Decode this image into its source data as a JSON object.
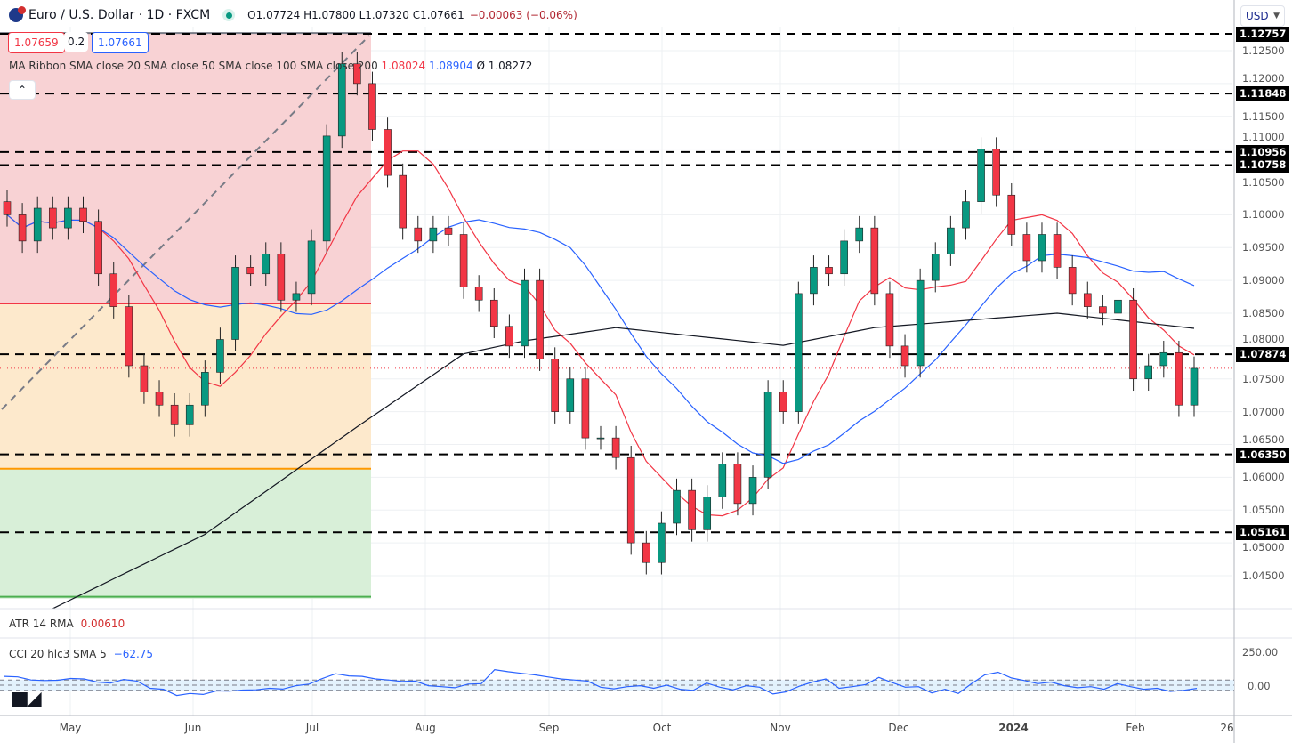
{
  "header": {
    "symbol_title": "Euro / U.S. Dollar · 1D · FXCM",
    "open": "O1.07724",
    "high": "H1.07800",
    "low": "L1.07320",
    "close": "C1.07661",
    "change": "−0.00063 (−0.06%)",
    "sell_price": "1.07659",
    "spread": "0.2",
    "buy_price": "1.07661",
    "collapse_icon": "chevron-up-icon",
    "currency_selector": "USD"
  },
  "ma_legend": {
    "label": "MA Ribbon SMA close 20 SMA close 50 SMA close 100 SMA close 200",
    "sma20": "1.08024",
    "sma50": "1.08904",
    "sma200_prefix": "Ø",
    "sma200": "1.08272"
  },
  "indicators": {
    "atr_label": "ATR 14 RMA",
    "atr_value": "0.00610",
    "cci_label": "CCI 20 hlc3 SMA 5",
    "cci_value": "−62.75",
    "cci_axis": [
      "250.00",
      "0.00"
    ]
  },
  "colors": {
    "up": "#089981",
    "down": "#f23645",
    "sma20": "#f23645",
    "sma50": "#2962ff",
    "sma200": "#131722",
    "fib_red": "#f8d2d4",
    "fib_orange": "#fde9cc",
    "fib_green": "#d8efd8",
    "cci": "#2962ff"
  },
  "chart_data": {
    "type": "candlestick",
    "title": "Euro / U.S. Dollar · 1D · FXCM",
    "ylim": [
      1.0415,
      1.129
    ],
    "grid": true,
    "closes": [
      1.1,
      1.096,
      1.101,
      1.098,
      1.101,
      1.099,
      1.091,
      1.086,
      1.077,
      1.073,
      1.071,
      1.068,
      1.071,
      1.076,
      1.081,
      1.092,
      1.091,
      1.094,
      1.087,
      1.088,
      1.096,
      1.112,
      1.123,
      1.12,
      1.113,
      1.106,
      1.098,
      1.096,
      1.098,
      1.097,
      1.089,
      1.087,
      1.083,
      1.08,
      1.09,
      1.078,
      1.07,
      1.075,
      1.066,
      1.066,
      1.063,
      1.05,
      1.047,
      1.053,
      1.058,
      1.052,
      1.057,
      1.062,
      1.056,
      1.06,
      1.073,
      1.07,
      1.088,
      1.092,
      1.091,
      1.096,
      1.098,
      1.088,
      1.08,
      1.077,
      1.09,
      1.094,
      1.098,
      1.102,
      1.11,
      1.103,
      1.097,
      1.093,
      1.097,
      1.092,
      1.088,
      1.086,
      1.085,
      1.087,
      1.075,
      1.077,
      1.079,
      1.071,
      1.0766
    ],
    "sma200_anchors": [
      [
        3,
        1.04
      ],
      [
        13,
        1.0513
      ],
      [
        23,
        1.0677
      ],
      [
        30,
        1.0788
      ],
      [
        34,
        1.0808
      ],
      [
        40,
        1.0828
      ],
      [
        51,
        1.0801
      ],
      [
        57,
        1.0828
      ],
      [
        69,
        1.085
      ],
      [
        78,
        1.0827
      ]
    ],
    "horizontal_levels": [
      "1.12757",
      "1.11848",
      "1.10956",
      "1.10758",
      "1.07874",
      "1.06350",
      "1.05161"
    ],
    "current_price": 1.07661,
    "fib_zones": [
      {
        "from": 1.1277,
        "to": 1.0865,
        "color": "#f8d2d4"
      },
      {
        "from": 1.0865,
        "to": 1.0613,
        "color": "#fde9cc"
      },
      {
        "from": 1.0613,
        "to": 1.0415,
        "color": "#d8efd8"
      }
    ],
    "y_ticks": [
      "1.12500",
      "1.12000",
      "1.11500",
      "1.11000",
      "1.10500",
      "1.10000",
      "1.09500",
      "1.09000",
      "1.08500",
      "1.08000",
      "1.07500",
      "1.07000",
      "1.06500",
      "1.06000",
      "1.05500",
      "1.05000",
      "1.04500"
    ],
    "x_ticks": [
      "May",
      "Jun",
      "Jul",
      "Aug",
      "Sep",
      "Oct",
      "Nov",
      "Dec",
      "2024",
      "Feb",
      "26"
    ],
    "cci_values": [
      170,
      160,
      100,
      90,
      95,
      130,
      120,
      60,
      40,
      110,
      80,
      -60,
      -80,
      -200,
      -160,
      -180,
      -110,
      -115,
      -95,
      -90,
      -60,
      -75,
      -10,
      20,
      130,
      220,
      180,
      170,
      120,
      100,
      70,
      80,
      -10,
      -30,
      -50,
      20,
      30,
      300,
      260,
      230,
      200,
      160,
      120,
      100,
      80,
      -40,
      -70,
      -30,
      -10,
      -60,
      0,
      -80,
      -100,
      40,
      -40,
      -90,
      -10,
      -40,
      -170,
      -130,
      -20,
      60,
      120,
      -60,
      -30,
      10,
      150,
      50,
      -40,
      -30,
      -150,
      -80,
      -160,
      30,
      200,
      250,
      140,
      90,
      30,
      60,
      -10,
      -50,
      -30,
      -80,
      30,
      -30,
      -80,
      -60,
      -120,
      -100,
      -62.75
    ]
  }
}
